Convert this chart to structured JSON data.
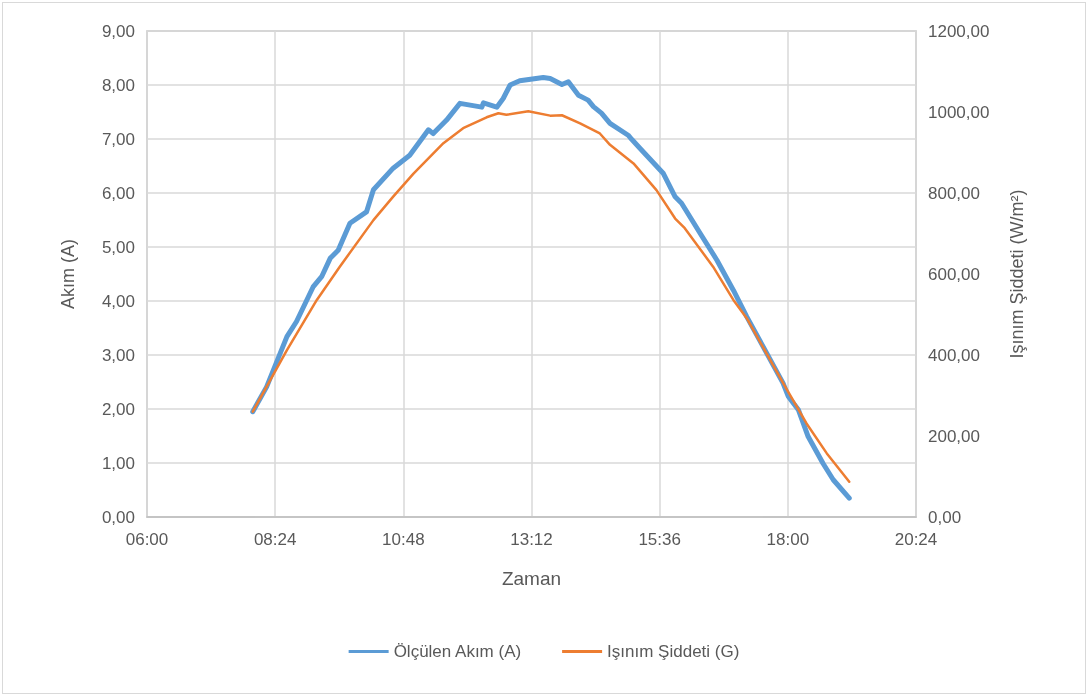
{
  "chart_data": {
    "type": "line",
    "xlabel": "Zaman",
    "ylabel": "Akım (A)",
    "y2label": "Işınım Şiddeti (W/m²)",
    "xlim": [
      6,
      20.4
    ],
    "xticks": [
      {
        "value": 6,
        "label": "06:00"
      },
      {
        "value": 8.4,
        "label": "08:24"
      },
      {
        "value": 10.8,
        "label": "10:48"
      },
      {
        "value": 13.2,
        "label": "13:12"
      },
      {
        "value": 15.6,
        "label": "15:36"
      },
      {
        "value": 18,
        "label": "18:00"
      },
      {
        "value": 20.4,
        "label": "20:24"
      }
    ],
    "ylim": [
      0,
      9
    ],
    "yticks": [
      {
        "value": 0,
        "label": "0,00"
      },
      {
        "value": 1,
        "label": "1,00"
      },
      {
        "value": 2,
        "label": "2,00"
      },
      {
        "value": 3,
        "label": "3,00"
      },
      {
        "value": 4,
        "label": "4,00"
      },
      {
        "value": 5,
        "label": "5,00"
      },
      {
        "value": 6,
        "label": "6,00"
      },
      {
        "value": 7,
        "label": "7,00"
      },
      {
        "value": 8,
        "label": "8,00"
      },
      {
        "value": 9,
        "label": "9,00"
      }
    ],
    "y2lim": [
      0,
      1200
    ],
    "y2ticks": [
      {
        "value": 0,
        "label": "0,00"
      },
      {
        "value": 200,
        "label": "200,00"
      },
      {
        "value": 400,
        "label": "400,00"
      },
      {
        "value": 600,
        "label": "600,00"
      },
      {
        "value": 800,
        "label": "800,00"
      },
      {
        "value": 1000,
        "label": "1000,00"
      },
      {
        "value": 1200,
        "label": "1200,00"
      }
    ],
    "grid": true,
    "legend": "bottom",
    "marker": "none",
    "line_style": "solid",
    "series": [
      {
        "name": "Ölçülen Akım (A)",
        "color": "#5b9bd5",
        "x": [
          7.98,
          8.24,
          8.62,
          8.8,
          9.11,
          9.27,
          9.43,
          9.58,
          9.8,
          10.11,
          10.24,
          10.61,
          10.92,
          11.27,
          11.36,
          11.61,
          11.86,
          12.27,
          12.3,
          12.55,
          12.67,
          12.8,
          12.98,
          13.42,
          13.55,
          13.77,
          13.89,
          14.08,
          14.26,
          14.36,
          14.51,
          14.67,
          15.01,
          15.08,
          15.23,
          15.67,
          15.89,
          16.01,
          16.36,
          16.67,
          16.98,
          17.23,
          17.54,
          17.91,
          18.01,
          18.2,
          18.38,
          18.66,
          18.85,
          19.15
        ],
        "values": [
          1.95,
          2.41,
          3.34,
          3.62,
          4.26,
          4.45,
          4.79,
          4.94,
          5.44,
          5.65,
          6.06,
          6.46,
          6.7,
          7.17,
          7.1,
          7.35,
          7.66,
          7.59,
          7.67,
          7.59,
          7.75,
          8.0,
          8.08,
          8.14,
          8.12,
          8.01,
          8.06,
          7.81,
          7.72,
          7.6,
          7.48,
          7.29,
          7.07,
          6.99,
          6.83,
          6.36,
          5.93,
          5.81,
          5.25,
          4.76,
          4.2,
          3.71,
          3.15,
          2.48,
          2.23,
          1.98,
          1.49,
          0.99,
          0.69,
          0.35
        ]
      },
      {
        "name": "Işınım Şiddeti (G)",
        "color": "#ed7d31",
        "axis": "y2",
        "x": [
          7.98,
          8.62,
          9.18,
          9.61,
          10.24,
          10.61,
          10.99,
          11.55,
          11.92,
          12.36,
          12.58,
          12.73,
          13.14,
          13.55,
          13.77,
          14.11,
          14.48,
          14.67,
          15.11,
          15.54,
          15.89,
          16.07,
          16.6,
          16.98,
          17.23,
          17.6,
          17.95,
          18.35,
          18.73,
          19.15
        ],
        "values": [
          260,
          412,
          536,
          618,
          733,
          791,
          848,
          923,
          960,
          987,
          997,
          993,
          1002,
          991,
          992,
          972,
          947,
          919,
          873,
          807,
          737,
          713,
          618,
          536,
          491,
          404,
          322,
          231,
          157,
          87
        ]
      }
    ]
  }
}
